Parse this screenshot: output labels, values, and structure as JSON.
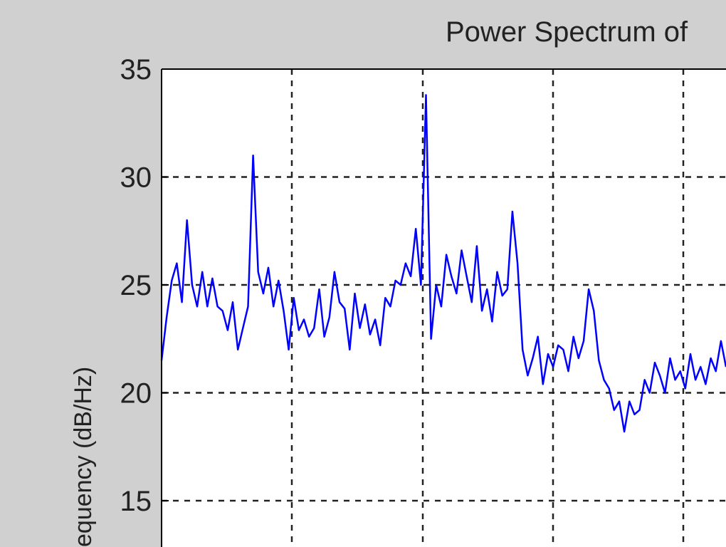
{
  "chart_data": {
    "type": "line",
    "title": "Power Spectrum of",
    "xlabel": "",
    "ylabel": "equency (dB/Hz)",
    "ylim": [
      12,
      35
    ],
    "yticks": [
      35,
      30,
      25,
      20,
      15
    ],
    "grid": true,
    "grid_style": "dashed",
    "colors": {
      "background": "#d0d0d0",
      "plot_area": "#ffffff",
      "line": "#0000ff",
      "grid": "#222222",
      "axis": "#000000"
    },
    "series": [
      {
        "values": [
          21.5,
          23.5,
          25.2,
          26.0,
          24.2,
          28.0,
          25.0,
          24.0,
          25.6,
          24.0,
          25.3,
          24.0,
          23.8,
          22.9,
          24.2,
          22.0,
          23.0,
          24.0,
          31.0,
          25.6,
          24.6,
          25.8,
          24.0,
          25.2,
          23.8,
          22.0,
          24.4,
          22.9,
          23.4,
          22.6,
          23.0,
          24.8,
          22.6,
          23.5,
          25.6,
          24.2,
          23.9,
          22.0,
          24.6,
          23.0,
          24.1,
          22.7,
          23.4,
          22.2,
          24.4,
          24.0,
          25.2,
          25.0,
          26.0,
          25.4,
          27.6,
          25.0,
          33.8,
          22.5,
          25.0,
          24.0,
          26.4,
          25.4,
          24.6,
          26.6,
          25.4,
          24.2,
          26.8,
          23.8,
          24.8,
          23.3,
          25.6,
          24.5,
          24.8,
          28.4,
          26.0,
          22.0,
          20.8,
          21.6,
          22.6,
          20.4,
          21.8,
          21.2,
          22.2,
          22.0,
          21.0,
          22.6,
          21.6,
          22.4,
          24.8,
          23.8,
          21.5,
          20.6,
          20.2,
          19.2,
          19.6,
          18.2,
          19.6,
          19.0,
          19.2,
          20.6,
          20.0,
          21.4,
          20.8,
          20.0,
          21.6,
          20.6,
          21.0,
          20.2,
          21.8,
          20.6,
          21.2,
          20.4,
          21.6,
          21.0,
          22.4,
          21.2
        ]
      }
    ]
  }
}
